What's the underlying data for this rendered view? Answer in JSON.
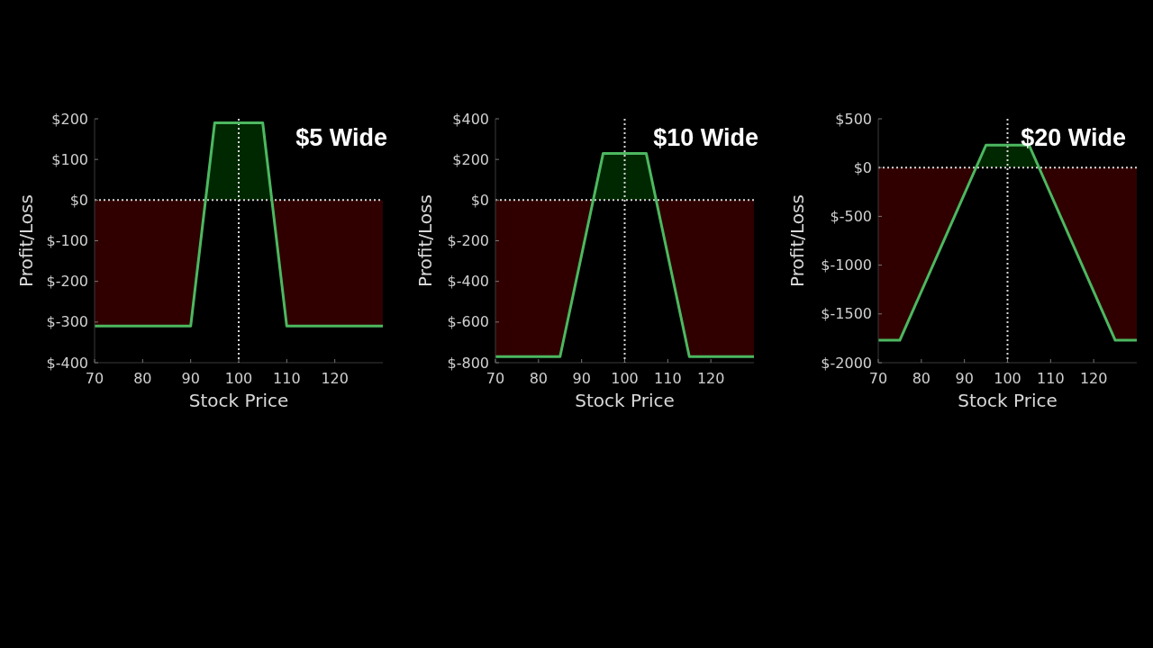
{
  "chart_data": [
    {
      "type": "area",
      "title": "$5 Wide",
      "xlabel": "Stock Price",
      "ylabel": "Profit/Loss",
      "x": [
        70,
        90,
        95,
        105,
        110,
        130
      ],
      "series": [
        {
          "color": "#4cb860",
          "values": [
            -310,
            -310,
            190,
            190,
            -310,
            -310
          ]
        }
      ],
      "xlim": [
        70,
        130
      ],
      "ylim": [
        -400,
        200
      ],
      "xticks": [
        70,
        80,
        90,
        100,
        110,
        120
      ],
      "yticks": [
        {
          "value": -400,
          "label": "$-400"
        },
        {
          "value": -300,
          "label": "$-300"
        },
        {
          "value": -200,
          "label": "$-200"
        },
        {
          "value": -100,
          "label": "$-100"
        },
        {
          "value": 0,
          "label": "$0"
        },
        {
          "value": 100,
          "label": "$100"
        },
        {
          "value": 200,
          "label": "$200"
        }
      ],
      "ref_lines": [
        {
          "axis": "y",
          "value": 0,
          "color": "#d8d8d8",
          "line_style": "dotted"
        },
        {
          "axis": "x",
          "value": 100,
          "color": "#d8d8d8",
          "line_style": "dotted"
        }
      ]
    },
    {
      "type": "area",
      "title": "$10 Wide",
      "xlabel": "Stock Price",
      "ylabel": "Profit/Loss",
      "x": [
        70,
        85,
        95,
        105,
        115,
        130
      ],
      "series": [
        {
          "color": "#4cb860",
          "values": [
            -770,
            -770,
            230,
            230,
            -770,
            -770
          ]
        }
      ],
      "xlim": [
        70,
        130
      ],
      "ylim": [
        -800,
        400
      ],
      "xticks": [
        70,
        80,
        90,
        100,
        110,
        120
      ],
      "yticks": [
        {
          "value": -800,
          "label": "$-800"
        },
        {
          "value": -600,
          "label": "$-600"
        },
        {
          "value": -400,
          "label": "$-400"
        },
        {
          "value": -200,
          "label": "$-200"
        },
        {
          "value": 0,
          "label": "$0"
        },
        {
          "value": 200,
          "label": "$200"
        },
        {
          "value": 400,
          "label": "$400"
        }
      ],
      "ref_lines": [
        {
          "axis": "y",
          "value": 0,
          "color": "#d8d8d8",
          "line_style": "dotted"
        },
        {
          "axis": "x",
          "value": 100,
          "color": "#d8d8d8",
          "line_style": "dotted"
        }
      ]
    },
    {
      "type": "area",
      "title": "$20 Wide",
      "xlabel": "Stock Price",
      "ylabel": "Profit/Loss",
      "x": [
        70,
        75,
        95,
        105,
        125,
        130
      ],
      "series": [
        {
          "color": "#4cb860",
          "values": [
            -1770,
            -1770,
            230,
            230,
            -1770,
            -1770
          ]
        }
      ],
      "xlim": [
        70,
        130
      ],
      "ylim": [
        -2000,
        500
      ],
      "xticks": [
        70,
        80,
        90,
        100,
        110,
        120
      ],
      "yticks": [
        {
          "value": -2000,
          "label": "$-2000"
        },
        {
          "value": -1500,
          "label": "$-1500"
        },
        {
          "value": -1000,
          "label": "$-1000"
        },
        {
          "value": -500,
          "label": "$-500"
        },
        {
          "value": 0,
          "label": "$0"
        },
        {
          "value": 500,
          "label": "$500"
        }
      ],
      "ref_lines": [
        {
          "axis": "y",
          "value": 0,
          "color": "#d8d8d8",
          "line_style": "dotted"
        },
        {
          "axis": "x",
          "value": 100,
          "color": "#d8d8d8",
          "line_style": "dotted"
        }
      ]
    }
  ]
}
